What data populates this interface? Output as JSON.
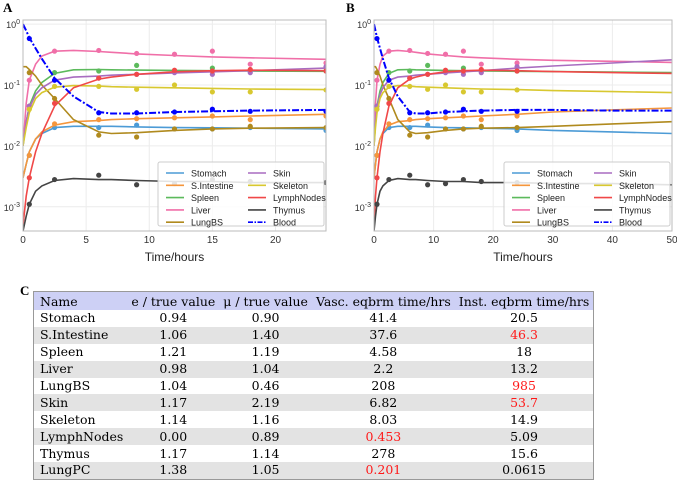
{
  "labels": {
    "a": "A",
    "b": "B",
    "c": "C"
  },
  "chart_data": {
    "type": "line",
    "yscale": "log",
    "ylim": [
      0.0004,
      1.17
    ],
    "yticks": [
      "10^0",
      "10^-1",
      "10^-2",
      "10^-3"
    ],
    "xlabel": "Time/hours",
    "legend_placement": "lower-right",
    "grid": true,
    "panels": [
      {
        "label": "A",
        "xlim": [
          0,
          24
        ],
        "xticks": [
          0,
          5,
          10,
          15,
          20
        ]
      },
      {
        "label": "B",
        "xlim": [
          0,
          50
        ],
        "xticks": [
          0,
          10,
          20,
          30,
          40,
          50
        ]
      }
    ],
    "fit_t": [
      0,
      0.25,
      0.5,
      1,
      1.5,
      2.5,
      4,
      6,
      7,
      9,
      12,
      15,
      18,
      24,
      30,
      40,
      50
    ],
    "point_t": [
      0.5,
      2.5,
      6,
      9,
      12,
      15,
      18,
      24
    ],
    "series": [
      {
        "name": "Stomach",
        "color": "#4c9bd6",
        "style": "solid",
        "fit": [
          0.003,
          0.005,
          0.008,
          0.013,
          0.016,
          0.02,
          0.021,
          0.021,
          0.021,
          0.0205,
          0.02,
          0.0198,
          0.0195,
          0.019,
          0.018,
          0.017,
          0.016
        ],
        "points": [
          0.007,
          0.02,
          0.02,
          0.022,
          0.019,
          0.019,
          0.02,
          0.018
        ]
      },
      {
        "name": "S.Intestine",
        "color": "#f5963c",
        "style": "solid",
        "fit": [
          0.003,
          0.005,
          0.008,
          0.013,
          0.017,
          0.022,
          0.025,
          0.026,
          0.027,
          0.028,
          0.029,
          0.03,
          0.031,
          0.033,
          0.036,
          0.039,
          0.042
        ],
        "points": [
          0.007,
          0.023,
          0.027,
          0.028,
          0.029,
          0.031,
          0.027,
          0.031
        ]
      },
      {
        "name": "Spleen",
        "color": "#5cba5c",
        "style": "solid",
        "fit": [
          0.01,
          0.025,
          0.045,
          0.08,
          0.11,
          0.155,
          0.178,
          0.18,
          0.178,
          0.176,
          0.174,
          0.172,
          0.17,
          0.168,
          0.166,
          0.163,
          0.16
        ],
        "points": [
          0.045,
          0.16,
          0.17,
          0.21,
          0.17,
          0.19,
          0.17,
          0.17
        ]
      },
      {
        "name": "Liver",
        "color": "#f06fa8",
        "style": "solid",
        "fit": [
          0.01,
          0.05,
          0.12,
          0.22,
          0.3,
          0.36,
          0.37,
          0.355,
          0.345,
          0.325,
          0.305,
          0.29,
          0.28,
          0.265,
          0.255,
          0.245,
          0.235
        ],
        "points": [
          0.12,
          0.36,
          0.37,
          0.33,
          0.32,
          0.36,
          0.22,
          0.23
        ]
      },
      {
        "name": "LungBS",
        "color": "#b08a1e",
        "style": "solid",
        "fit": [
          0.2,
          0.2,
          0.18,
          0.14,
          0.1,
          0.06,
          0.027,
          0.017,
          0.016,
          0.0165,
          0.018,
          0.019,
          0.0195,
          0.02,
          0.021,
          0.023,
          0.025
        ],
        "points": [
          0.16,
          0.06,
          0.015,
          0.014,
          0.019,
          0.019,
          0.021,
          0.02
        ]
      },
      {
        "name": "Skin",
        "color": "#a86cc0",
        "style": "solid",
        "fit": [
          0.01,
          0.025,
          0.042,
          0.07,
          0.09,
          0.12,
          0.135,
          0.14,
          0.145,
          0.15,
          0.158,
          0.165,
          0.172,
          0.19,
          0.205,
          0.23,
          0.26
        ],
        "points": [
          0.045,
          0.12,
          0.13,
          0.15,
          0.16,
          0.15,
          0.16,
          0.2
        ]
      },
      {
        "name": "Skeleton",
        "color": "#d8c830",
        "style": "solid",
        "fit": [
          0.01,
          0.02,
          0.035,
          0.06,
          0.075,
          0.092,
          0.098,
          0.096,
          0.094,
          0.092,
          0.09,
          0.088,
          0.086,
          0.084,
          0.081,
          0.078,
          0.075
        ],
        "points": [
          0.04,
          0.095,
          0.095,
          0.085,
          0.1,
          0.077,
          0.077,
          0.083
        ]
      },
      {
        "name": "LymphNodes",
        "color": "#f04848",
        "style": "solid",
        "fit": [
          0.0005,
          0.0015,
          0.003,
          0.008,
          0.016,
          0.045,
          0.09,
          0.125,
          0.135,
          0.15,
          0.165,
          0.172,
          0.175,
          0.172,
          0.166,
          0.16,
          0.155
        ],
        "points": [
          0.003,
          0.05,
          0.13,
          0.15,
          0.175,
          0.17,
          0.18,
          0.17
        ]
      },
      {
        "name": "Thymus",
        "color": "#444444",
        "style": "solid",
        "fit": [
          0.0004,
          0.0007,
          0.0011,
          0.0018,
          0.0022,
          0.0027,
          0.0029,
          0.0028,
          0.0028,
          0.0027,
          0.0026,
          0.0026,
          0.0025,
          0.0025,
          0.0024,
          0.0024,
          0.0023
        ],
        "points": [
          0.0011,
          0.0028,
          0.0033,
          0.0023,
          0.0024,
          0.0028,
          0.0026,
          0.0025
        ]
      },
      {
        "name": "Blood",
        "color": "#0000ff",
        "style": "dashdot",
        "fit": [
          1.0,
          0.78,
          0.6,
          0.4,
          0.27,
          0.13,
          0.065,
          0.036,
          0.034,
          0.034,
          0.036,
          0.037,
          0.038,
          0.039,
          0.039,
          0.038,
          0.038
        ],
        "points": [
          0.58,
          0.12,
          0.035,
          0.035,
          0.036,
          0.04,
          0.037,
          0.037
        ]
      }
    ]
  },
  "table": {
    "headers": [
      "Name",
      "e / true value",
      "μ / true value",
      "Vasc. eqbrm time/hrs",
      "Inst. eqbrm time/hrs"
    ],
    "rows": [
      {
        "cells": [
          "Stomach",
          "0.94",
          "0.90",
          "41.4",
          "20.5"
        ],
        "red": []
      },
      {
        "cells": [
          "S.Intestine",
          "1.06",
          "1.40",
          "37.6",
          "46.3"
        ],
        "red": [
          4
        ]
      },
      {
        "cells": [
          "Spleen",
          "1.21",
          "1.19",
          "4.58",
          "18"
        ],
        "red": []
      },
      {
        "cells": [
          "Liver",
          "0.98",
          "1.04",
          "2.2",
          "13.2"
        ],
        "red": []
      },
      {
        "cells": [
          "LungBS",
          "1.04",
          "0.46",
          "208",
          "985"
        ],
        "red": [
          4
        ]
      },
      {
        "cells": [
          "Skin",
          "1.17",
          "2.19",
          "6.82",
          "53.7"
        ],
        "red": [
          4
        ]
      },
      {
        "cells": [
          "Skeleton",
          "1.14",
          "1.16",
          "8.03",
          "14.9"
        ],
        "red": []
      },
      {
        "cells": [
          "LymphNodes",
          "0.00",
          "0.89",
          "0.453",
          "5.09"
        ],
        "red": [
          3
        ]
      },
      {
        "cells": [
          "Thymus",
          "1.17",
          "1.14",
          "278",
          "15.6"
        ],
        "red": []
      },
      {
        "cells": [
          "LungPC",
          "1.38",
          "1.05",
          "0.201",
          "0.0615"
        ],
        "red": [
          3
        ]
      }
    ]
  }
}
